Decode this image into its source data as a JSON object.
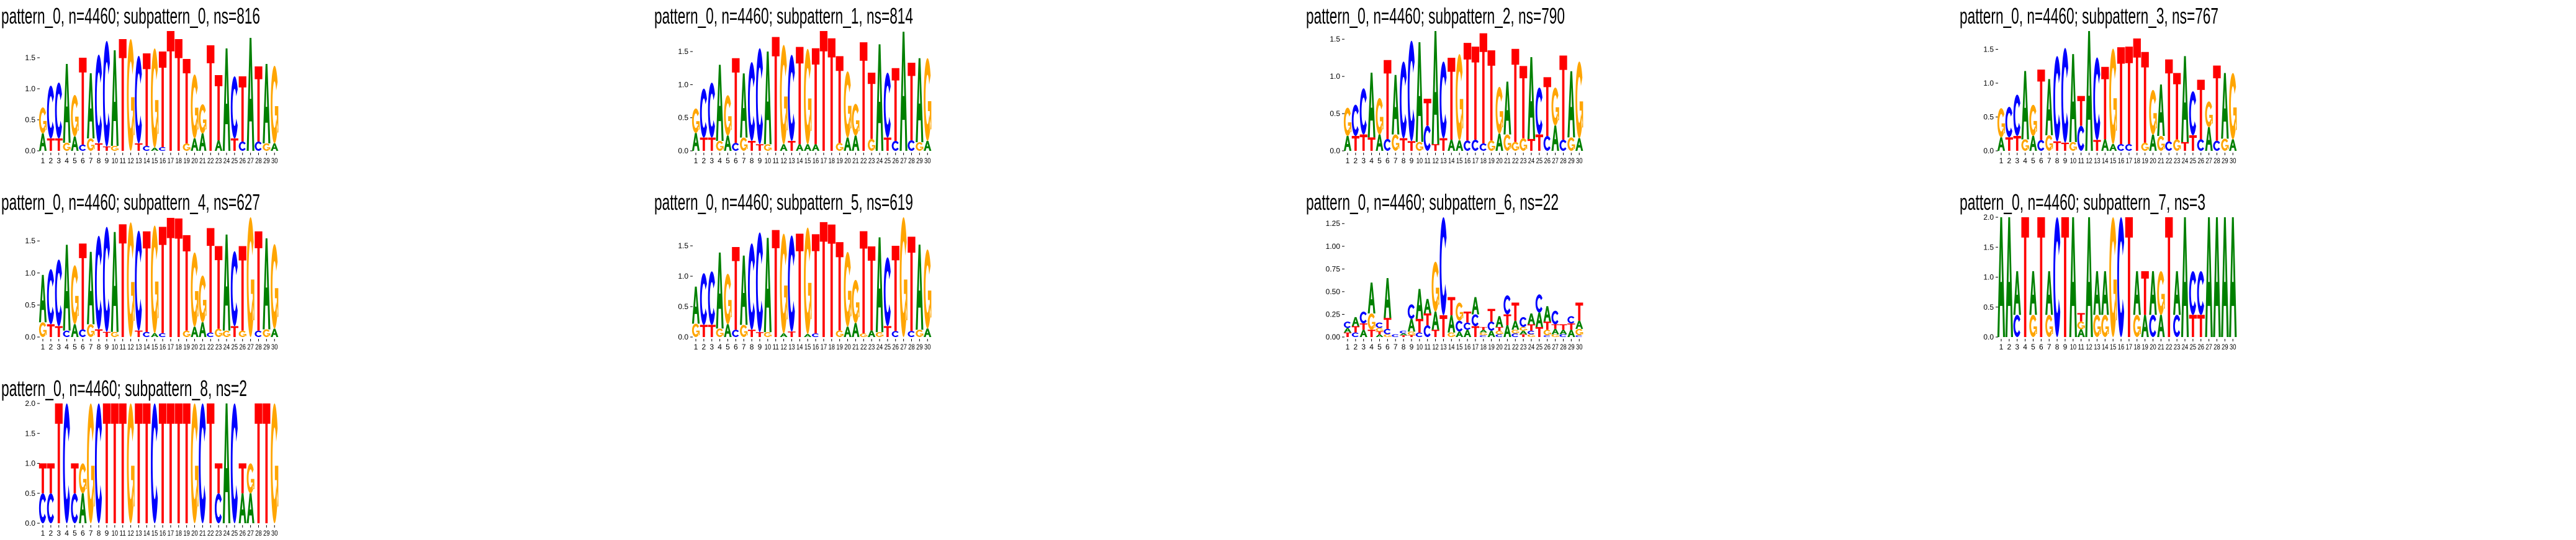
{
  "colors": {
    "A": "#008000",
    "C": "#0000ff",
    "G": "#ffa500",
    "T": "#ff0000"
  },
  "chart_data": [
    {
      "type": "sequence-logo",
      "title": "pattern_0, n=4460; subpattern_0, ns=816",
      "ylim": [
        0,
        1.93
      ],
      "yticks": [
        "0.0",
        "0.5",
        "1.0",
        "1.5"
      ],
      "ytick_values": [
        0,
        0.5,
        1.0,
        1.5
      ],
      "positions": [
        "1",
        "2",
        "3",
        "4",
        "5",
        "6",
        "7",
        "8",
        "9",
        "10",
        "11",
        "12",
        "13",
        "14",
        "15",
        "16",
        "17",
        "18",
        "19",
        "20",
        "21",
        "22",
        "23",
        "24",
        "25",
        "26",
        "27",
        "28",
        "29",
        "30"
      ],
      "columns": [
        "A:.28 G:.42",
        "T:.2 C:.85",
        "T:.2 C:.9",
        "G:.13 A:1.27",
        "A:.23 G:.67",
        "C:.1 T:1.4",
        "G:.2 A:1.05",
        "T:.12 C:1.43",
        "T:.07 C:1.7",
        "G:.08 A:1.54",
        "T:1.8",
        "G:1.8",
        "T:.12 C:1.41",
        "C:.08 T:1.49",
        "A:.05 G:1.6",
        "C:.06 T:1.54",
        "T:1.93",
        "T:1.8",
        "G:.12 T:1.36",
        "A:.2 G:1.03",
        "A:.28 G:.47",
        "T:1.7",
        "A:.17 T:1.05",
        "A:1.65",
        "T:.2 C:1.0",
        "C:.15 T:1.05",
        "A:1.82",
        "C:.15 T:1.21",
        "G:.12 A:1.28",
        "A:.12 G:1.25"
      ]
    },
    {
      "type": "sequence-logo",
      "title": "pattern_0, n=4460; subpattern_1, ns=814",
      "ylim": [
        0,
        1.81
      ],
      "yticks": [
        "0.0",
        "0.5",
        "1.0",
        "1.5"
      ],
      "ytick_values": [
        0,
        0.5,
        1.0,
        1.5
      ],
      "positions": [
        "1",
        "2",
        "3",
        "4",
        "5",
        "6",
        "7",
        "8",
        "9",
        "10",
        "11",
        "12",
        "13",
        "14",
        "15",
        "16",
        "17",
        "18",
        "19",
        "20",
        "21",
        "22",
        "23",
        "24",
        "25",
        "26",
        "27",
        "28",
        "29",
        "30"
      ],
      "columns": [
        "A:.27 G:.37",
        "T:.2 C:.74",
        "T:.2 C:.83",
        "G:.15 A:1.15",
        "A:.23 G:.61",
        "C:.12 T:1.28",
        "G:.2 A:.97",
        "T:.15 C:1.19",
        "T:.1 C:1.45",
        "G:.1 A:1.4",
        "T:1.72",
        "A:.1 G:1.5",
        "T:.15 C:1.3",
        "A:.1 T:1.47",
        "A:.1 G:1.44",
        "A:.1 T:1.45",
        "T:1.81",
        "T:1.7",
        "G:.12 T:1.31",
        "A:.2 G:1.0",
        "A:.23 G:.48",
        "T:1.64",
        "G:.18 T:1.0",
        "A:1.61",
        "T:.2 C:.98",
        "C:.15 T:1.1",
        "A:1.8",
        "C:.16 T:1.17",
        "G:.13 A:1.27",
        "A:.15 G:1.25"
      ]
    },
    {
      "type": "sequence-logo",
      "title": "pattern_0, n=4460; subpattern_2, ns=790",
      "ylim": [
        0,
        1.61
      ],
      "yticks": [
        "0.0",
        "0.5",
        "1.0",
        "1.5"
      ],
      "ytick_values": [
        0,
        0.5,
        1.0,
        1.5
      ],
      "positions": [
        "1",
        "2",
        "3",
        "4",
        "5",
        "6",
        "7",
        "8",
        "9",
        "10",
        "11",
        "12",
        "13",
        "14",
        "15",
        "16",
        "17",
        "18",
        "19",
        "20",
        "21",
        "22",
        "23",
        "24",
        "25",
        "26",
        "27",
        "28",
        "29",
        "30"
      ],
      "columns": [
        "A:.2 G:.38",
        "T:.2 C:.42",
        "T:.22 C:.62",
        "T:.18 A:.87",
        "A:.22 G:.49",
        "C:.16 T:1.06",
        "G:.22 A:.8",
        "T:.17 C:1.03",
        "T:.13 C:1.35",
        "G:.12 A:1.34",
        "C:.34 T:.36",
        "T:.09 A:1.52",
        "T:.17 C:1.03",
        "A:.15 T:1.1",
        "A:.14 G:1.16",
        "C:.14 T:1.31",
        "C:.15 T:1.25",
        "C:.1 T:1.48",
        "G:.14 T:1.21",
        "A:.23 G:.63",
        "G:.22 A:.71",
        "G:.12 T:1.25",
        "G:.17 T:.97",
        "T:.16 A:1.1",
        "T:.22 C:.63",
        "C:.2 T:.79",
        "A:.34 G:.51",
        "C:.15 T:1.13",
        "G:.18 A:.89",
        "A:.17 G:1.03"
      ]
    },
    {
      "type": "sequence-logo",
      "title": "pattern_0, n=4460; subpattern_3, ns=767",
      "ylim": [
        0,
        1.77
      ],
      "yticks": [
        "0.0",
        "0.5",
        "1.0",
        "1.5"
      ],
      "ytick_values": [
        0,
        0.5,
        1.0,
        1.5
      ],
      "positions": [
        "1",
        "2",
        "3",
        "4",
        "5",
        "6",
        "7",
        "8",
        "9",
        "10",
        "11",
        "12",
        "13",
        "14",
        "15",
        "16",
        "17",
        "18",
        "19",
        "20",
        "21",
        "22",
        "23",
        "24",
        "25",
        "26",
        "27",
        "28",
        "29",
        "30"
      ],
      "columns": [
        "A:.2 G:.43",
        "T:.2 C:.45",
        "T:.22 C:.61",
        "G:.17 A:1.01",
        "A:.22 G:.46",
        "C:.16 T:1.04",
        "G:.23 A:.83",
        "T:.14 C:1.26",
        "T:.12 C:1.4",
        "G:.13 A:1.3",
        "C:.37 T:.44",
        "A:1.77",
        "T:.16 C:1.22",
        "A:.17 T:1.07",
        "A:.1 G:1.41",
        "C:.1 T:1.43",
        "C:.1 T:1.44",
        "T:1.66",
        "G:.12 T:1.34",
        "A:.24 G:.66",
        "G:.22 A:.76",
        "C:.14 T:1.21",
        "G:.17 T:.98",
        "T:.13 A:1.27",
        "T:.23 C:.65",
        "C:.17 T:.88",
        "A:.35 G:.38",
        "C:.15 T:1.11",
        "G:.18 A:.97",
        "A:.17 G:.98"
      ]
    },
    {
      "type": "sequence-logo",
      "title": "pattern_0, n=4460; subpattern_4, ns=627",
      "ylim": [
        0,
        1.87
      ],
      "yticks": [
        "0.0",
        "0.5",
        "1.0",
        "1.5"
      ],
      "ytick_values": [
        0,
        0.5,
        1.0,
        1.5
      ],
      "positions": [
        "1",
        "2",
        "3",
        "4",
        "5",
        "6",
        "7",
        "8",
        "9",
        "10",
        "11",
        "12",
        "13",
        "14",
        "15",
        "16",
        "17",
        "18",
        "19",
        "20",
        "21",
        "22",
        "23",
        "24",
        "25",
        "26",
        "27",
        "28",
        "29",
        "30"
      ],
      "columns": [
        "G:.23 A:.74",
        "T:.2 C:.86",
        "T:.17 C:1.04",
        "C:.1 A:1.34",
        "A:.2 G:.92",
        "C:.12 T:1.34",
        "G:.2 A:1.13",
        "T:.12 C:1.46",
        "T:.08 C:1.64",
        "G:.08 A:1.56",
        "T:1.76",
        "G:1.79",
        "T:.1 C:1.56",
        "C:.08 T:1.57",
        "A:.06 G:1.68",
        "C:.06 T:1.66",
        "T:1.86",
        "T:1.85",
        "G:.1 T:1.49",
        "A:.16 G:1.16",
        "A:.23 G:.73",
        "C:.07 T:1.63",
        "G:.13 T:1.29",
        "G:.1 A:1.5",
        "T:.17 C:1.17",
        "G:.1 T:1.32",
        "G:1.87",
        "C:.1 T:1.55",
        "G:.12 A:1.42",
        "A:.13 G:1.32"
      ]
    },
    {
      "type": "sequence-logo",
      "title": "pattern_0, n=4460; subpattern_5, ns=619",
      "ylim": [
        0,
        1.97
      ],
      "yticks": [
        "0.0",
        "0.5",
        "1.0",
        "1.5"
      ],
      "ytick_values": [
        0,
        0.5,
        1.0,
        1.5
      ],
      "positions": [
        "1",
        "2",
        "3",
        "4",
        "5",
        "6",
        "7",
        "8",
        "9",
        "10",
        "11",
        "12",
        "13",
        "14",
        "15",
        "16",
        "17",
        "18",
        "19",
        "20",
        "21",
        "22",
        "23",
        "24",
        "25",
        "26",
        "27",
        "28",
        "29",
        "30"
      ],
      "columns": [
        "G:.22 A:.61",
        "T:.2 C:.85",
        "T:.2 C:.88",
        "G:.14 A:1.25",
        "A:.21 G:.83",
        "C:.12 T:1.36",
        "G:.2 A:1.14",
        "T:.12 C:1.42",
        "T:.08 C:1.64",
        "G:.08 A:1.55",
        "T:1.76",
        "A:.06 G:1.64",
        "T:.09 C:1.58",
        "T:1.7",
        "A:.05 G:1.75",
        "C:.06 T:1.63",
        "T:1.89",
        "T:1.85",
        "G:.11 T:1.45",
        "A:.17 G:1.23",
        "A:.23 G:.71",
        "G:.06 T:1.68",
        "A:.11 T:1.38",
        "G:.08 A:1.56",
        "T:.18 C:1.13",
        "C:.1 T:1.4",
        "G:1.97",
        "C:.1 T:1.55",
        "G:.12 A:1.4",
        "A:.14 G:1.3"
      ]
    },
    {
      "type": "sequence-logo",
      "title": "pattern_0, n=4460; subpattern_6, ns=22",
      "ylim": [
        0,
        1.32
      ],
      "yticks": [
        "0.00",
        "0.25",
        "0.50",
        "0.75",
        "1.00",
        "1.25"
      ],
      "ytick_values": [
        0,
        0.25,
        0.5,
        0.75,
        1.0,
        1.25
      ],
      "positions": [
        "1",
        "2",
        "3",
        "4",
        "5",
        "6",
        "7",
        "8",
        "9",
        "10",
        "11",
        "12",
        "13",
        "14",
        "15",
        "16",
        "17",
        "18",
        "19",
        "20",
        "21",
        "22",
        "23",
        "24",
        "25",
        "26",
        "27",
        "28",
        "29",
        "30"
      ],
      "columns": [
        "T:.05 A:.05 C:.07",
        "C:.05 T:.07 A:.1",
        "A:.08 T:.07 C:.13",
        "T:.08 G:.18 A:.34",
        "A:.03 T:.03 G:.04 C:.06",
        "G:.03 C:.06 T:.12 A:.44",
        "C:.03",
        "T:.02 A:.02 C:.03",
        "T:.02 G:.04 A:.14 C:.16",
        "C:.05 T:.15 A:.33",
        "C:.13 T:.13 A:.16",
        "T:.08 A:.2 G:.55",
        "T:.24 C:1.08",
        "G:.05 A:.19 T:.2",
        "A:.06 C:.12 G:.2",
        "A:.08 C:.08 T:.12",
        "T:.12 C:.13 A:.19",
        "C:.02 G:.03 A:.03 T:.03",
        "A:.07 C:.1 T:.14",
        "C:.03 G:.04 T:.04 A:.12",
        "A:.13 T:.12 C:.21",
        "C:.04 G:.04 A:.1 T:.2",
        "T:.03 A:.04 G:.04 C:.11",
        "G:.03 C:.04 T:.07 A:.12",
        "T:.11 A:.16 C:.2",
        "C:.02 G:.06 T:.09 A:.17",
        "G:.03 A:.06 T:.05 C:.15",
        "C:.03 A:.05 T:.06",
        "A:.08 T:.07 C:.08",
        "C:.02 G:.07 A:.09 T:.2"
      ]
    },
    {
      "type": "sequence-logo",
      "title": "pattern_0, n=4460; subpattern_7, ns=3",
      "ylim": [
        0,
        2.0
      ],
      "yticks": [
        "0.0",
        "0.5",
        "1.0",
        "1.5",
        "2.0"
      ],
      "ytick_values": [
        0,
        0.5,
        1.0,
        1.5,
        2.0
      ],
      "positions": [
        "1",
        "2",
        "3",
        "4",
        "5",
        "6",
        "7",
        "8",
        "9",
        "10",
        "11",
        "12",
        "13",
        "14",
        "15",
        "16",
        "17",
        "18",
        "19",
        "20",
        "21",
        "22",
        "23",
        "24",
        "25",
        "26",
        "27",
        "28",
        "29",
        "30"
      ],
      "columns": [
        "A:2",
        "A:2",
        "C:.37 A:.73",
        "T:2",
        "G:.37 A:.73",
        "T:2",
        "G:.37 A:.73",
        "C:2",
        "T:2",
        "A:2",
        "A:.13 G:.13 T:.14",
        "A:2",
        "G:.37 A:.73",
        "G:.37 A:.73",
        "G:2",
        "C:2",
        "T:2",
        "G:.37 A:.73",
        "A:.37 T:.73",
        "C:.37 A:.73",
        "A:.37 G:.73",
        "T:2",
        "C:.37 A:.73",
        "A:2",
        "T:.37 C:.73",
        "T:.37 C:.73",
        "A:2",
        "A:2",
        "A:2",
        "A:2"
      ]
    },
    {
      "type": "sequence-logo",
      "title": "pattern_0, n=4460; subpattern_8, ns=2",
      "ylim": [
        0,
        2.0
      ],
      "yticks": [
        "0.0",
        "0.5",
        "1.0",
        "1.5",
        "2.0"
      ],
      "ytick_values": [
        0,
        0.5,
        1.0,
        1.5,
        2.0
      ],
      "positions": [
        "1",
        "2",
        "3",
        "4",
        "5",
        "6",
        "7",
        "8",
        "9",
        "10",
        "11",
        "12",
        "13",
        "14",
        "15",
        "16",
        "17",
        "18",
        "19",
        "20",
        "21",
        "22",
        "23",
        "24",
        "25",
        "26",
        "27",
        "28",
        "29",
        "30"
      ],
      "columns": [
        "C:.5 T:.5",
        "C:.5 T:.5",
        "T:2",
        "C:2",
        "C:.5 T:.5",
        "A:.5 G:.5",
        "G:2",
        "C:2",
        "T:2",
        "T:2",
        "T:2",
        "G:2",
        "T:2",
        "T:2",
        "C:2",
        "T:2",
        "T:2",
        "T:2",
        "T:2",
        "G:2",
        "C:2",
        "T:2",
        "C:.5 T:.5",
        "A:2",
        "C:2",
        "A:.5 T:.5",
        "A:.5 G:.5",
        "T:2",
        "T:2",
        "G:2"
      ]
    }
  ]
}
